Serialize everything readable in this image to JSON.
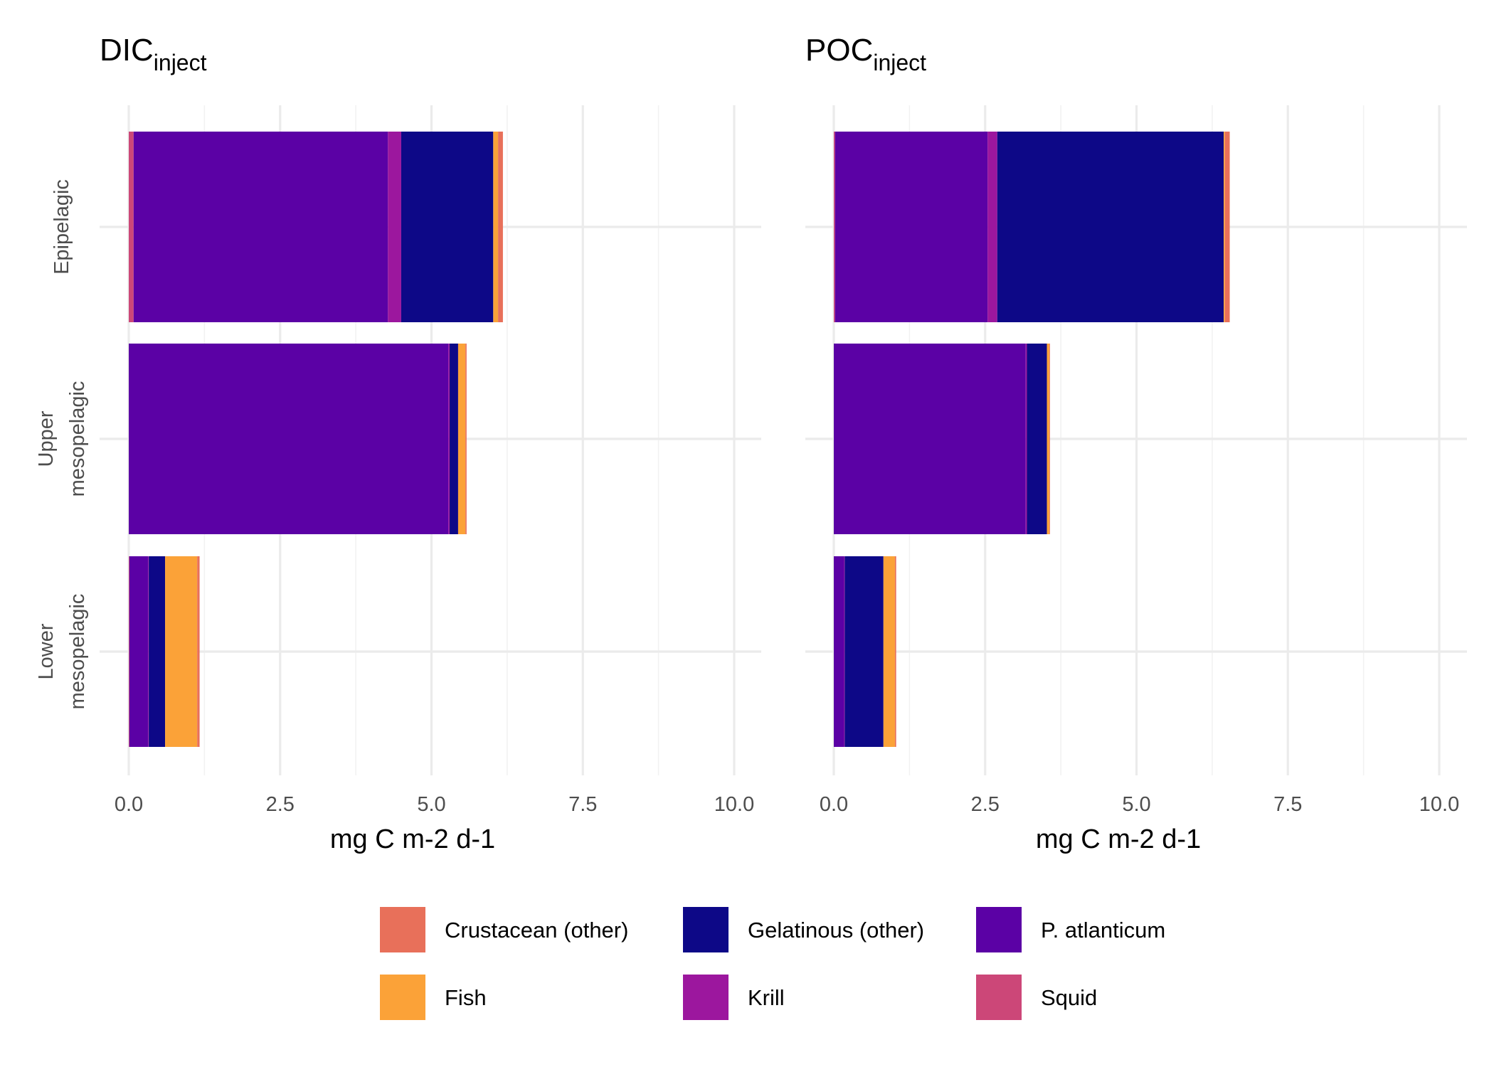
{
  "chart_data": {
    "type": "bar",
    "orientation": "horizontal",
    "stacked": true,
    "xlabel": "mg C m-2 d-1",
    "xlim": [
      0,
      10.5
    ],
    "xticks": [
      "0.0",
      "2.5",
      "5.0",
      "7.5",
      "10.0"
    ],
    "categories": [
      "Epipelagic",
      "Upper mesopelagic",
      "Lower mesopelagic"
    ],
    "category_lines": [
      [
        "Epipelagic"
      ],
      [
        "Upper",
        "mesopelagic"
      ],
      [
        "Lower",
        "mesopelagic"
      ]
    ],
    "stack_order": [
      "Squid",
      "P. atlanticum",
      "Krill",
      "Gelatinous (other)",
      "Fish",
      "Crustacean (other)"
    ],
    "colors": {
      "Crustacean (other)": "#e8705a",
      "Fish": "#fba238",
      "Gelatinous (other)": "#0d0887",
      "Krill": "#9c179e",
      "P. atlanticum": "#5b01a5",
      "Squid": "#cc4778"
    },
    "legend": {
      "position": "bottom",
      "items": [
        "Crustacean (other)",
        "Gelatinous (other)",
        "P. atlanticum",
        "Fish",
        "Krill",
        "Squid"
      ]
    },
    "grid": true,
    "panels": [
      {
        "title": "DIC",
        "title_sub": "inject",
        "bars": {
          "Epipelagic": {
            "Squid": 0.08,
            "P. atlanticum": 4.2,
            "Krill": 0.22,
            "Gelatinous (other)": 1.52,
            "Fish": 0.08,
            "Crustacean (other)": 0.08
          },
          "Upper mesopelagic": {
            "Squid": 0.0,
            "P. atlanticum": 5.28,
            "Krill": 0.02,
            "Gelatinous (other)": 0.14,
            "Fish": 0.12,
            "Crustacean (other)": 0.02
          },
          "Lower mesopelagic": {
            "Squid": 0.01,
            "P. atlanticum": 0.31,
            "Krill": 0.01,
            "Gelatinous (other)": 0.27,
            "Fish": 0.53,
            "Crustacean (other)": 0.04
          }
        }
      },
      {
        "title": "POC",
        "title_sub": "inject",
        "bars": {
          "Epipelagic": {
            "Squid": 0.02,
            "P. atlanticum": 2.52,
            "Krill": 0.16,
            "Gelatinous (other)": 3.74,
            "Fish": 0.02,
            "Crustacean (other)": 0.08
          },
          "Upper mesopelagic": {
            "Squid": 0.0,
            "P. atlanticum": 3.17,
            "Krill": 0.02,
            "Gelatinous (other)": 0.33,
            "Fish": 0.04,
            "Crustacean (other)": 0.01
          },
          "Lower mesopelagic": {
            "Squid": 0.0,
            "P. atlanticum": 0.17,
            "Krill": 0.01,
            "Gelatinous (other)": 0.64,
            "Fish": 0.19,
            "Crustacean (other)": 0.02
          }
        }
      }
    ]
  }
}
